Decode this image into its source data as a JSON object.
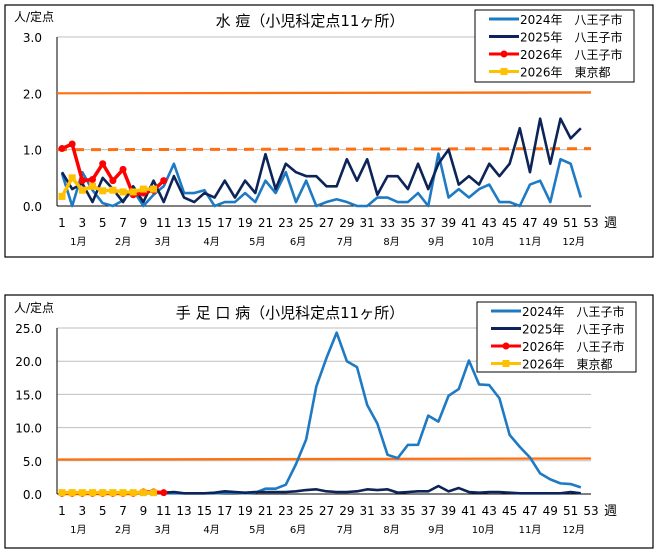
{
  "chart_data": [
    {
      "type": "line",
      "title": "水 痘（小児科定点11ヶ所）",
      "ylabel": "人/定点",
      "xlabel": "週",
      "ylim": [
        0,
        3
      ],
      "y_ticks": [
        "0.0",
        "1.0",
        "2.0",
        "3.0"
      ],
      "y_tick_values": [
        0,
        1,
        2,
        3
      ],
      "xlim": [
        1,
        53
      ],
      "x_ticks": [
        "1",
        "3",
        "5",
        "7",
        "9",
        "11",
        "13",
        "15",
        "17",
        "19",
        "21",
        "23",
        "25",
        "27",
        "29",
        "31",
        "33",
        "35",
        "37",
        "39",
        "41",
        "43",
        "45",
        "47",
        "49",
        "51",
        "53"
      ],
      "months": [
        {
          "label": "1月",
          "week": 2.6
        },
        {
          "label": "2月",
          "week": 7
        },
        {
          "label": "3月",
          "week": 10.9
        },
        {
          "label": "4月",
          "week": 15.7
        },
        {
          "label": "5月",
          "week": 20.2
        },
        {
          "label": "6月",
          "week": 24.2
        },
        {
          "label": "7月",
          "week": 28.8
        },
        {
          "label": "8月",
          "week": 33.4
        },
        {
          "label": "9月",
          "week": 37.8
        },
        {
          "label": "10月",
          "week": 42.4
        },
        {
          "label": "11月",
          "week": 47
        },
        {
          "label": "12月",
          "week": 51.3
        }
      ],
      "grid": true,
      "legend": "top-right",
      "reference_lines": [
        {
          "value": 2.0,
          "style": "solid",
          "color": "#ff6f0f"
        },
        {
          "value": 1.0,
          "style": "dashed",
          "color": "#ff6f0f"
        }
      ],
      "series": [
        {
          "name": "2024年　八王子市",
          "color": "#1f7ac4",
          "marker": "none",
          "values": [
            0.58,
            0,
            0.6,
            0.28,
            0.05,
            0,
            0.1,
            0.28,
            0,
            0.2,
            0.35,
            0.75,
            0.23,
            0.23,
            0.28,
            0,
            0.07,
            0.07,
            0.23,
            0.07,
            0.45,
            0.23,
            0.6,
            0.07,
            0.45,
            0,
            0.07,
            0.12,
            0.07,
            0,
            0,
            0.15,
            0.15,
            0.07,
            0.07,
            0.23,
            0,
            0.93,
            0.15,
            0.3,
            0.15,
            0.3,
            0.38,
            0.07,
            0.07,
            0,
            0.38,
            0.45,
            0.07,
            0.83,
            0.75,
            0.15
          ]
        },
        {
          "name": "2025年　八王子市",
          "color": "#0d2458",
          "marker": "none",
          "values": [
            0.6,
            0.3,
            0.4,
            0.07,
            0.5,
            0.3,
            0.07,
            0.35,
            0.07,
            0.45,
            0.07,
            0.53,
            0.15,
            0.07,
            0.23,
            0.15,
            0.45,
            0.15,
            0.45,
            0.23,
            0.92,
            0.3,
            0.75,
            0.6,
            0.53,
            0.53,
            0.35,
            0.35,
            0.83,
            0.45,
            0.83,
            0.2,
            0.53,
            0.53,
            0.3,
            0.75,
            0.3,
            0.75,
            1.0,
            0.38,
            0.53,
            0.38,
            0.75,
            0.53,
            0.75,
            1.38,
            0.6,
            1.55,
            0.75,
            1.55,
            1.2,
            1.38
          ]
        },
        {
          "name": "2026年　八王子市",
          "color": "#ff0000",
          "marker": "circle",
          "values": [
            1.02,
            1.1,
            0.45,
            0.47,
            0.75,
            0.45,
            0.65,
            0.2,
            0.23,
            0.28,
            0.45
          ]
        },
        {
          "name": "2026年　東京都",
          "color": "#ffc000",
          "marker": "square",
          "values": [
            0.17,
            0.5,
            0.28,
            0.35,
            0.27,
            0.28,
            0.25,
            0.25,
            0.3,
            0.3
          ]
        }
      ]
    },
    {
      "type": "line",
      "title": "手 足 口 病（小児科定点11ヶ所）",
      "ylabel": "人/定点",
      "xlabel": "週",
      "ylim": [
        0,
        25
      ],
      "y_ticks": [
        "0.0",
        "5.0",
        "10.0",
        "15.0",
        "20.0",
        "25.0"
      ],
      "y_tick_values": [
        0,
        5,
        10,
        15,
        20,
        25
      ],
      "xlim": [
        1,
        53
      ],
      "x_ticks": [
        "1",
        "3",
        "5",
        "7",
        "9",
        "11",
        "13",
        "15",
        "17",
        "19",
        "21",
        "23",
        "25",
        "27",
        "29",
        "31",
        "33",
        "35",
        "37",
        "39",
        "41",
        "43",
        "45",
        "47",
        "49",
        "51",
        "53"
      ],
      "months": [
        {
          "label": "1月",
          "week": 2.6
        },
        {
          "label": "2月",
          "week": 7
        },
        {
          "label": "3月",
          "week": 10.9
        },
        {
          "label": "4月",
          "week": 15.7
        },
        {
          "label": "5月",
          "week": 20.2
        },
        {
          "label": "6月",
          "week": 24.2
        },
        {
          "label": "7月",
          "week": 28.8
        },
        {
          "label": "8月",
          "week": 33.4
        },
        {
          "label": "9月",
          "week": 37.8
        },
        {
          "label": "10月",
          "week": 42.4
        },
        {
          "label": "11月",
          "week": 47
        },
        {
          "label": "12月",
          "week": 51.3
        }
      ],
      "grid": true,
      "legend": "top-right",
      "reference_lines": [
        {
          "value": 5.2,
          "style": "solid",
          "color": "#ff6f0f"
        }
      ],
      "series": [
        {
          "name": "2024年　八王子市",
          "color": "#1f7ac4",
          "marker": "none",
          "values": [
            0.2,
            0.1,
            0.1,
            0.1,
            0.1,
            0.1,
            0.1,
            0.1,
            0.1,
            0.1,
            0.1,
            0.1,
            0.1,
            0.1,
            0.1,
            0.1,
            0.2,
            0.2,
            0.1,
            0.2,
            0.8,
            0.8,
            1.4,
            4.5,
            8.2,
            16.2,
            20.5,
            24.3,
            20,
            19.1,
            13.4,
            10.6,
            5.9,
            5.4,
            7.4,
            7.4,
            11.8,
            10.9,
            14.8,
            15.8,
            20.1,
            16.5,
            16.4,
            14.4,
            8.9,
            7.1,
            5.5,
            3.1,
            2.2,
            1.6,
            1.5,
            1.0
          ]
        },
        {
          "name": "2025年　八王子市",
          "color": "#0d2458",
          "marker": "none",
          "values": [
            0.3,
            0.2,
            0.1,
            0.1,
            0.1,
            0.1,
            0.1,
            0.1,
            0.1,
            0.2,
            0.2,
            0.3,
            0.1,
            0.1,
            0.1,
            0.2,
            0.4,
            0.3,
            0.2,
            0.3,
            0.3,
            0.3,
            0.3,
            0.4,
            0.6,
            0.7,
            0.4,
            0.3,
            0.3,
            0.4,
            0.7,
            0.6,
            0.7,
            0.2,
            0.3,
            0.4,
            0.4,
            1.2,
            0.4,
            0.9,
            0.3,
            0.2,
            0.3,
            0.3,
            0.2,
            0.1,
            0.1,
            0.1,
            0.1,
            0.1,
            0.3,
            0.1
          ]
        },
        {
          "name": "2026年　八王子市",
          "color": "#ff0000",
          "marker": "circle",
          "values": [
            0.1,
            0.1,
            0.1,
            0.1,
            0.1,
            0.1,
            0.1,
            0.1,
            0.3,
            0.3,
            0.2
          ]
        },
        {
          "name": "2026年　東京都",
          "color": "#ffc000",
          "marker": "square",
          "values": [
            0.2,
            0.2,
            0.2,
            0.2,
            0.2,
            0.2,
            0.2,
            0.2,
            0.2,
            0.2
          ]
        }
      ]
    }
  ]
}
